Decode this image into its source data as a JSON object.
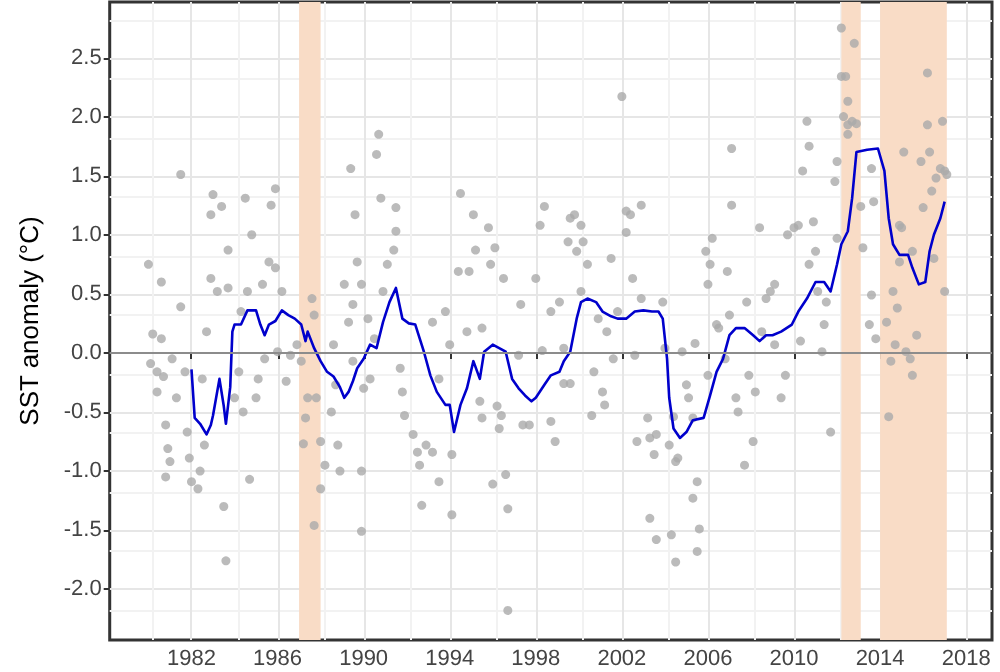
{
  "chart_data": {
    "type": "scatter",
    "ylabel": "SST anomaly (°C)",
    "xlim": [
      1978.2,
      2019.2
    ],
    "xticks": [
      1982,
      1986,
      1990,
      1994,
      1998,
      2002,
      2006,
      2010,
      2014,
      2018
    ],
    "ylim": [
      -2.43,
      2.97
    ],
    "yticks": [
      {
        "value": -2,
        "label": "-2.0"
      },
      -1.5,
      {
        "value": -1,
        "label": "-1.0"
      },
      -0.5,
      {
        "value": 0,
        "label": "0.0"
      },
      0.5,
      {
        "value": 1,
        "label": "1.0"
      },
      1.5,
      {
        "value": 2,
        "label": "2.0"
      },
      2.5
    ],
    "grid": true,
    "ref_lines": [
      {
        "axis": "y",
        "value": 0,
        "color": "#8c8c8c"
      }
    ],
    "bands": [
      {
        "axis": "x",
        "from": 1987,
        "to": 1988,
        "color": "#f9dcc6"
      },
      {
        "axis": "x",
        "from": 2012.2,
        "to": 2013.1,
        "color": "#f9dcc6"
      },
      {
        "axis": "x",
        "from": 2014,
        "to": 2017.1,
        "color": "#f9dcc6"
      }
    ],
    "series": [
      {
        "color": "#aaaaaa",
        "x": [
          1980.0,
          1980.6,
          1980.2,
          1980.6,
          1980.1,
          1980.4,
          1980.4,
          1980.7,
          1981.5,
          1981.5,
          1980.8,
          1980.9,
          1981.0,
          1980.8,
          1981.1,
          1981.7,
          1981.3,
          1981.8,
          1981.9,
          1982.0,
          1982.3,
          1982.4,
          1982.6,
          1982.5,
          1982.7,
          1982.9,
          1982.9,
          1983.0,
          1983.4,
          1983.2,
          1983.5,
          1983.6,
          1983.7,
          1983.7,
          1984.0,
          1984.2,
          1984.4,
          1984.5,
          1984.7,
          1984.8,
          1984.6,
          1984.3,
          1985.0,
          1985.1,
          1985.3,
          1985.4,
          1985.6,
          1985.7,
          1985.9,
          1985.9,
          1986.2,
          1986.0,
          1986.4,
          1986.6,
          1986.9,
          1987.1,
          1987.3,
          1987.2,
          1987.4,
          1987.6,
          1987.7,
          1987.8,
          1987.7,
          1988.0,
          1988.0,
          1988.2,
          1988.5,
          1988.6,
          1988.7,
          1988.8,
          1988.9,
          1989.1,
          1989.4,
          1989.6,
          1989.7,
          1989.3,
          1989.5,
          1989.9,
          1989.9,
          1990.7,
          1990.6,
          1990.8,
          1991.5,
          1991.5,
          1991.4,
          1991.1,
          1989.9,
          1989.5,
          1990.9,
          1990.2,
          1990.5,
          1990.3,
          1990.0,
          1991.7,
          1991.8,
          1991.9,
          1992.3,
          1992.5,
          1992.6,
          1992.9,
          1993.2,
          1992.7,
          1993.2,
          1993.5,
          1993.8,
          1993.5,
          1994.1,
          1994.1,
          1994.0,
          1994.4,
          1994.5,
          1994.9,
          1995.1,
          1995.2,
          1994.8,
          1995.5,
          1995.4,
          1995.5,
          1995.8,
          1996.1,
          1995.9,
          1996.2,
          1996.4,
          1996.3,
          1996.0,
          1996.6,
          1996.7,
          1996.7,
          1996.5,
          1997.3,
          1997.2,
          1997.4,
          1997.7,
          1998.0,
          1998.2,
          1998.4,
          1998.3,
          1998.7,
          1998.7,
          1998.9,
          1999.1,
          1999.3,
          1999.3,
          1999.6,
          1999.5,
          1999.6,
          1999.8,
          1999.9,
          2000.1,
          2000.2,
          2000.4,
          2000.1,
          2000.6,
          2000.7,
          2000.9,
          2001.1,
          2001.2,
          2001.5,
          2001.3,
          2001.6,
          2001.8,
          2002.0,
          2002.2,
          2002.2,
          2002.4,
          2002.9,
          2002.5,
          2002.6,
          2002.7,
          2002.9,
          2003.2,
          2003.3,
          2003.6,
          2003.5,
          2003.3,
          2003.6,
          2003.9,
          2004.0,
          2004.2,
          2004.3,
          2004.5,
          2004.5,
          2004.4,
          2004.6,
          2004.8,
          2005.0,
          2005.1,
          2005.3,
          2005.5,
          2005.3,
          2005.6,
          2005.5,
          2005.4,
          2006.0,
          2005.9,
          2006.1,
          2006.2,
          2006.0,
          2006.4,
          2006.5,
          2006.8,
          2006.9,
          2007.1,
          2007.1,
          2007.0,
          2007.3,
          2007.4,
          2007.7,
          2007.9,
          2007.8,
          2008.1,
          2008.2,
          2008.4,
          2008.5,
          2008.7,
          2008.9,
          2009.1,
          2009.1,
          2009.4,
          2009.6,
          2009.7,
          2010.0,
          2010.2,
          2010.3,
          2010.4,
          2010.6,
          2010.7,
          2010.7,
          2010.9,
          2011.0,
          2011.1,
          2011.3,
          2011.4,
          2011.5,
          2011.7,
          2011.9,
          2012.0,
          2012.0,
          2012.2,
          2012.2,
          2012.4,
          2012.5,
          2012.3,
          2012.5,
          2012.8,
          2012.7,
          2012.9,
          2012.5,
          2013.1,
          2013.2,
          2013.6,
          2013.7,
          2013.6,
          2013.5,
          2013.8,
          2014.3,
          2014.4,
          2014.5,
          2014.7,
          2014.8,
          2014.6,
          2014.9,
          2015.0,
          2015.1,
          2014.9,
          2015.2,
          2015.4,
          2015.5,
          2015.5,
          2015.7,
          2015.9,
          2016.0,
          2016.2,
          2016.2,
          2016.3,
          2016.4,
          2016.5,
          2016.6,
          2016.8,
          2016.9,
          2017.0,
          2017.1,
          2017.0
        ],
        "values": [
          0.75,
          0.6,
          0.16,
          0.12,
          -0.09,
          -0.16,
          -0.33,
          -0.2,
          0.39,
          1.51,
          -0.61,
          -0.81,
          -0.92,
          -1.05,
          -0.05,
          -0.16,
          -0.38,
          -0.67,
          -0.89,
          -1.09,
          -1.15,
          -1.0,
          -0.78,
          -0.22,
          0.18,
          0.63,
          1.17,
          1.34,
          1.24,
          0.52,
          -1.3,
          -1.76,
          0.55,
          0.87,
          -0.38,
          -0.16,
          -0.5,
          1.31,
          -1.07,
          1.0,
          0.52,
          0.35,
          -0.38,
          -0.22,
          0.58,
          -0.05,
          0.77,
          1.25,
          1.39,
          0.72,
          0.52,
          0.01,
          -0.24,
          -0.02,
          0.07,
          -0.07,
          -0.55,
          -0.77,
          -0.38,
          0.46,
          0.32,
          -0.38,
          -1.46,
          -0.75,
          -1.15,
          -0.95,
          -0.5,
          0.07,
          -0.27,
          -0.78,
          -1.0,
          0.58,
          1.56,
          1.17,
          0.77,
          0.26,
          -0.07,
          -1.0,
          -1.51,
          1.85,
          1.68,
          1.31,
          1.23,
          1.03,
          0.87,
          0.75,
          0.58,
          0.41,
          0.52,
          0.29,
          0.12,
          -0.22,
          -0.3,
          -0.13,
          -0.33,
          -0.53,
          -0.69,
          -0.84,
          -0.95,
          -0.78,
          -0.84,
          -1.29,
          0.26,
          -0.22,
          0.35,
          -1.09,
          -0.86,
          -1.37,
          0.07,
          0.69,
          1.35,
          0.69,
          1.17,
          0.87,
          0.18,
          0.21,
          -0.41,
          -0.55,
          1.06,
          0.89,
          0.75,
          -0.45,
          -0.53,
          -0.64,
          -1.11,
          -1.03,
          -1.32,
          -2.18,
          0.63,
          0.41,
          -0.02,
          -0.61,
          -0.61,
          0.63,
          1.08,
          1.24,
          0.02,
          0.35,
          -0.58,
          -0.75,
          0.43,
          0.04,
          -0.26,
          -0.26,
          0.94,
          1.14,
          1.17,
          0.86,
          1.08,
          0.94,
          0.75,
          0.52,
          -0.53,
          -0.16,
          0.29,
          -0.33,
          -0.44,
          0.8,
          0.18,
          -0.05,
          0.35,
          2.17,
          1.2,
          1.02,
          1.17,
          1.25,
          0.63,
          -0.02,
          -0.75,
          0.46,
          -0.55,
          -0.72,
          -0.69,
          -0.86,
          -1.4,
          -1.58,
          0.43,
          0.04,
          -0.78,
          -1.54,
          -1.77,
          -0.92,
          -0.54,
          -0.89,
          0.01,
          -0.27,
          -0.38,
          -0.55,
          -1.09,
          -1.23,
          -1.49,
          -1.68,
          0.08,
          -0.19,
          0.86,
          0.75,
          0.97,
          0.58,
          0.24,
          0.21,
          -0.05,
          0.69,
          1.25,
          1.73,
          0.32,
          -0.38,
          -0.5,
          -0.95,
          -0.19,
          0.43,
          -0.75,
          -0.33,
          1.06,
          0.18,
          0.46,
          0.52,
          0.58,
          0.07,
          -0.38,
          -0.19,
          1.0,
          1.06,
          1.08,
          0.1,
          1.54,
          1.96,
          1.75,
          0.75,
          1.11,
          0.86,
          0.52,
          0.01,
          0.24,
          0.43,
          -0.67,
          1.45,
          1.62,
          0.97,
          2.75,
          2.34,
          2.34,
          2.13,
          2.0,
          1.93,
          2.62,
          1.96,
          1.94,
          1.85,
          1.24,
          0.89,
          1.56,
          1.28,
          0.49,
          0.24,
          0.12,
          0.26,
          -0.54,
          -0.07,
          0.07,
          0.38,
          0.52,
          1.08,
          1.06,
          1.7,
          0.77,
          0.01,
          -0.05,
          -0.19,
          0.86,
          0.15,
          1.62,
          1.23,
          1.93,
          2.37,
          1.7,
          1.37,
          0.8,
          1.48,
          1.56,
          1.96,
          1.54,
          1.51,
          0.52
        ]
      },
      {
        "type": "line",
        "color": "#0000cc",
        "x": [
          1982.0,
          1982.15,
          1982.4,
          1982.7,
          1982.9,
          1983.0,
          1983.3,
          1983.5,
          1983.6,
          1983.8,
          1983.9,
          1984.0,
          1984.3,
          1984.6,
          1985.0,
          1985.2,
          1985.4,
          1985.6,
          1985.9,
          1986.2,
          1986.5,
          1986.8,
          1987.1,
          1987.3,
          1987.4,
          1987.7,
          1988.0,
          1988.3,
          1988.6,
          1988.9,
          1989.1,
          1989.3,
          1989.5,
          1989.7,
          1990.0,
          1990.3,
          1990.6,
          1990.9,
          1991.2,
          1991.5,
          1991.8,
          1992.1,
          1992.4,
          1992.8,
          1993.1,
          1993.4,
          1993.8,
          1994.0,
          1994.2,
          1994.5,
          1994.8,
          1995.1,
          1995.4,
          1995.6,
          1996.0,
          1996.3,
          1996.6,
          1996.9,
          1997.2,
          1997.5,
          1997.8,
          1998.0,
          1998.4,
          1998.7,
          1999.1,
          1999.3,
          1999.6,
          1999.9,
          2000.1,
          2000.4,
          2000.8,
          2001.1,
          2001.5,
          2001.8,
          2002.2,
          2002.6,
          2003.0,
          2003.4,
          2003.7,
          2003.9,
          2004.1,
          2004.2,
          2004.4,
          2004.7,
          2005.0,
          2005.3,
          2005.8,
          2006.1,
          2006.4,
          2006.7,
          2007.0,
          2007.3,
          2007.7,
          2008.1,
          2008.4,
          2008.7,
          2009.0,
          2009.4,
          2009.9,
          2010.2,
          2010.6,
          2011.0,
          2011.4,
          2011.7,
          2012.0,
          2012.2,
          2012.5,
          2012.7,
          2012.9,
          2013.4,
          2013.9,
          2014.2,
          2014.4,
          2014.6,
          2014.9,
          2015.3,
          2015.5,
          2015.8,
          2016.1,
          2016.3,
          2016.5,
          2016.8,
          2017.0
        ],
        "values": [
          -0.14,
          -0.55,
          -0.6,
          -0.69,
          -0.61,
          -0.53,
          -0.22,
          -0.45,
          -0.6,
          -0.29,
          0.18,
          0.24,
          0.24,
          0.36,
          0.36,
          0.24,
          0.15,
          0.24,
          0.27,
          0.36,
          0.32,
          0.29,
          0.24,
          0.1,
          0.18,
          0.04,
          -0.07,
          -0.16,
          -0.2,
          -0.29,
          -0.38,
          -0.33,
          -0.24,
          -0.13,
          -0.05,
          0.07,
          0.04,
          0.26,
          0.43,
          0.55,
          0.29,
          0.25,
          0.24,
          0.01,
          -0.19,
          -0.33,
          -0.44,
          -0.44,
          -0.67,
          -0.44,
          -0.3,
          -0.07,
          -0.22,
          0.01,
          0.07,
          0.04,
          0.01,
          -0.22,
          -0.3,
          -0.36,
          -0.41,
          -0.38,
          -0.27,
          -0.19,
          -0.16,
          -0.07,
          0.01,
          0.29,
          0.43,
          0.46,
          0.43,
          0.35,
          0.31,
          0.29,
          0.29,
          0.35,
          0.36,
          0.35,
          0.35,
          0.29,
          -0.05,
          -0.38,
          -0.64,
          -0.72,
          -0.67,
          -0.57,
          -0.55,
          -0.36,
          -0.16,
          -0.05,
          0.15,
          0.21,
          0.21,
          0.15,
          0.1,
          0.15,
          0.15,
          0.18,
          0.24,
          0.35,
          0.46,
          0.6,
          0.6,
          0.52,
          0.75,
          0.92,
          1.03,
          1.31,
          1.7,
          1.72,
          1.73,
          1.54,
          1.14,
          0.92,
          0.83,
          0.83,
          0.72,
          0.58,
          0.6,
          0.86,
          1.0,
          1.14,
          1.28
        ]
      }
    ]
  }
}
